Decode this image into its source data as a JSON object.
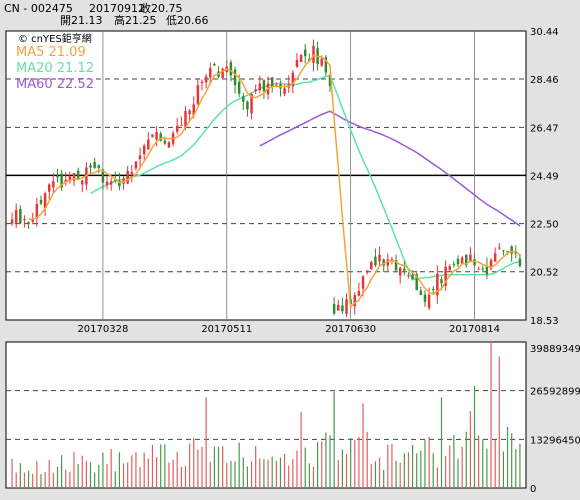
{
  "header": {
    "symbol": "CN - 002475",
    "date": "20170912",
    "close_label": "收20.75",
    "open_label": "開21.13",
    "high_label": "高21.25",
    "low_label": "低20.66"
  },
  "watermark": "© cnYES鉅亨網",
  "colors": {
    "up": "#e8333a",
    "down": "#2e8b2e",
    "ma5": "#f5a33b",
    "ma20": "#5ee3a6",
    "ma60": "#9b59d9",
    "volume_up": "#e06060",
    "volume_down": "#4a9a4a"
  },
  "chart_data": [
    {
      "type": "candlestick",
      "title": "",
      "ylim": [
        18.53,
        30.44
      ],
      "y_ticks": [
        "30.44",
        "28.46",
        "26.47",
        "24.49",
        "22.50",
        "20.52",
        "18.53"
      ],
      "x_ticks": [
        "20170328",
        "20170511",
        "20170630",
        "20170814"
      ],
      "legend": [
        {
          "name": "MA5 21.09",
          "color": "#f5a33b"
        },
        {
          "name": "MA20 21.12",
          "color": "#5ee3a6"
        },
        {
          "name": "MA60 22.52",
          "color": "#9b59d9"
        }
      ],
      "sessions": 124,
      "gap_start_index": 78,
      "anchors": [
        {
          "i": 0,
          "c": 22.9
        },
        {
          "i": 4,
          "c": 22.6
        },
        {
          "i": 9,
          "c": 24.1
        },
        {
          "i": 14,
          "c": 24.3
        },
        {
          "i": 20,
          "c": 24.6
        },
        {
          "i": 27,
          "c": 24.1
        },
        {
          "i": 33,
          "c": 25.9
        },
        {
          "i": 40,
          "c": 26.2
        },
        {
          "i": 46,
          "c": 28.3
        },
        {
          "i": 49,
          "c": 29.0
        },
        {
          "i": 53,
          "c": 28.6
        },
        {
          "i": 57,
          "c": 27.5
        },
        {
          "i": 61,
          "c": 28.3
        },
        {
          "i": 66,
          "c": 27.8
        },
        {
          "i": 70,
          "c": 29.3
        },
        {
          "i": 73,
          "c": 29.6
        },
        {
          "i": 77,
          "c": 28.4
        },
        {
          "i": 78,
          "c": 19.0
        },
        {
          "i": 81,
          "c": 19.1
        },
        {
          "i": 84,
          "c": 19.9
        },
        {
          "i": 88,
          "c": 20.9
        },
        {
          "i": 92,
          "c": 20.8
        },
        {
          "i": 96,
          "c": 20.4
        },
        {
          "i": 100,
          "c": 19.6
        },
        {
          "i": 104,
          "c": 20.3
        },
        {
          "i": 107,
          "c": 21.1
        },
        {
          "i": 111,
          "c": 21.0
        },
        {
          "i": 115,
          "c": 20.6
        },
        {
          "i": 119,
          "c": 21.5
        },
        {
          "i": 123,
          "c": 20.75
        }
      ],
      "ma_end_values": {
        "ma5": 21.09,
        "ma20": 21.12,
        "ma60": 22.52
      }
    },
    {
      "type": "bar",
      "title": "",
      "ylim": [
        0,
        39889349
      ],
      "y_ticks": [
        "39889349",
        "26592899",
        "13296450",
        "0"
      ],
      "volume_profile": [
        {
          "i": 0,
          "v": 0.16
        },
        {
          "i": 20,
          "v": 0.18
        },
        {
          "i": 45,
          "v": 0.24
        },
        {
          "i": 70,
          "v": 0.18
        },
        {
          "i": 78,
          "v": 0.36
        },
        {
          "i": 90,
          "v": 0.22
        },
        {
          "i": 105,
          "v": 0.26
        },
        {
          "i": 115,
          "v": 0.48
        },
        {
          "i": 123,
          "v": 0.42
        }
      ],
      "peaks": [
        {
          "i": 116,
          "v": 1.0
        },
        {
          "i": 118,
          "v": 0.9
        },
        {
          "i": 112,
          "v": 0.7
        },
        {
          "i": 104,
          "v": 0.62
        },
        {
          "i": 78,
          "v": 0.66
        },
        {
          "i": 85,
          "v": 0.58
        },
        {
          "i": 47,
          "v": 0.62
        },
        {
          "i": 70,
          "v": 0.52
        }
      ]
    }
  ]
}
